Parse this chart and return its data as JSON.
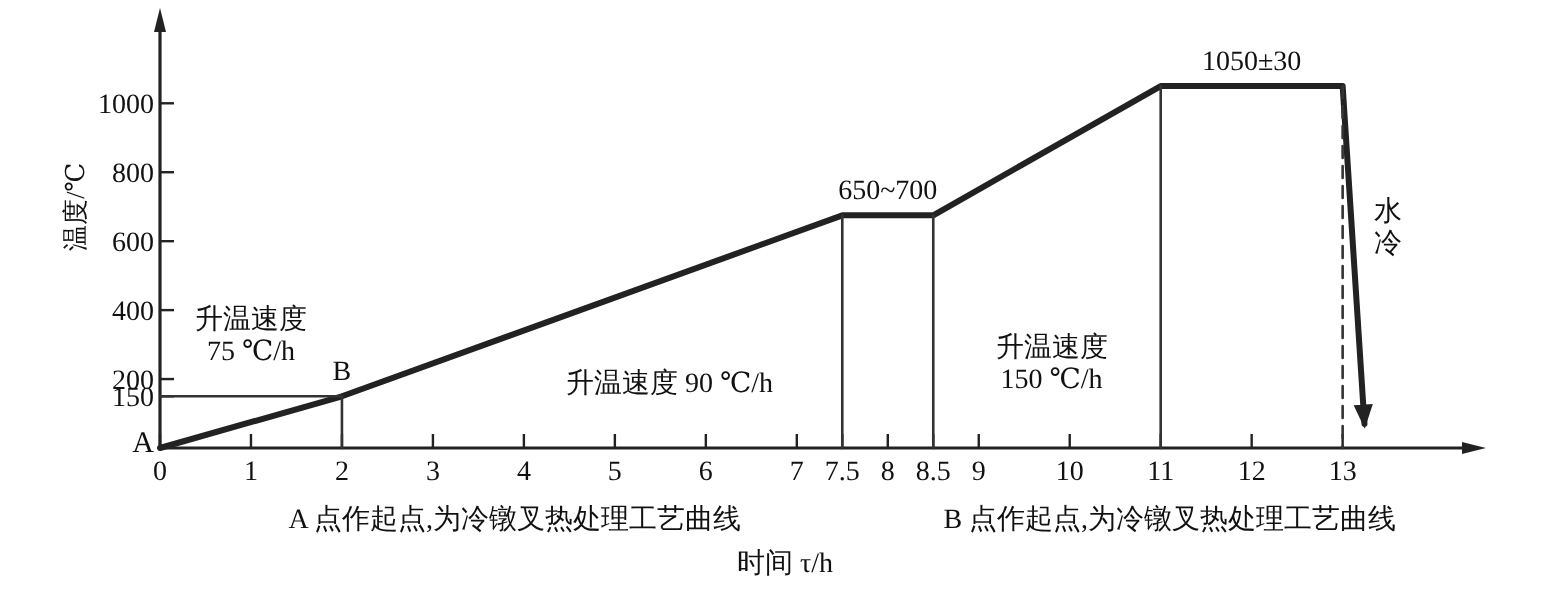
{
  "chart_data": {
    "type": "line",
    "xlabel": "时间 τ/h",
    "ylabel": "温度/℃",
    "xlim": [
      0,
      14.4
    ],
    "ylim": [
      0,
      1230
    ],
    "xticks": [
      0,
      1,
      2,
      3,
      4,
      5,
      6,
      7,
      7.5,
      8,
      8.5,
      9,
      10,
      11,
      12,
      13
    ],
    "yticks": [
      150,
      200,
      400,
      600,
      800,
      1000
    ],
    "grid": false,
    "marker": "none",
    "series": [
      {
        "color": "#222222",
        "x": [
          0,
          2,
          7.5,
          8.5,
          11,
          13,
          13.24
        ],
        "values": [
          0,
          150,
          675,
          675,
          1050,
          1050,
          70
        ]
      },
      {
        "color": "#333333",
        "x": [
          0,
          2,
          2
        ],
        "values": [
          150,
          150,
          0
        ]
      },
      {
        "color": "#333333",
        "x": [
          7.5,
          7.5
        ],
        "values": [
          675,
          0
        ]
      },
      {
        "color": "#333333",
        "x": [
          8.5,
          8.5
        ],
        "values": [
          675,
          0
        ]
      },
      {
        "color": "#333333",
        "x": [
          11,
          11
        ],
        "values": [
          1050,
          0
        ]
      },
      {
        "color": "#333333",
        "x": [
          13,
          13
        ],
        "values": [
          1050,
          0
        ],
        "line_style": "dashed"
      }
    ],
    "annotations": [
      {
        "text": "A",
        "x": 0,
        "y": 0
      },
      {
        "text": "B",
        "x": 2,
        "y": 150
      },
      {
        "text": "650~700",
        "x": 8,
        "y": 675
      },
      {
        "text": "1050±30",
        "x": 12,
        "y": 1050
      },
      "升温速度 75 ℃/h",
      "升温速度 90 ℃/h",
      "升温速度 150 ℃/h",
      "水冷",
      "A 点作起点,为冷镦叉热处理工艺曲线",
      "B 点作起点,为冷镦叉热处理工艺曲线"
    ]
  }
}
